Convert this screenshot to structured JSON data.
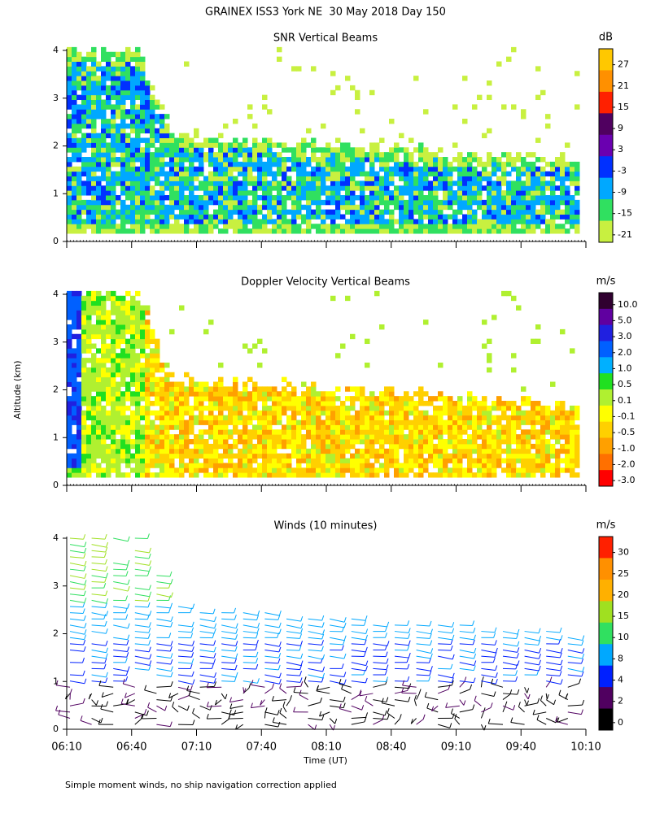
{
  "title": "GRAINEX ISS3 York NE  30 May 2018 Day 150",
  "footnote": "Simple moment winds, no ship navigation correction applied",
  "chart_data": [
    {
      "type": "heatmap",
      "title": "SNR Vertical Beams",
      "ylim": [
        0,
        4
      ],
      "yticks": [
        0,
        1,
        2,
        3,
        4
      ],
      "xlim": [
        370,
        610
      ],
      "xticks": [
        370,
        400,
        430,
        460,
        490,
        520,
        550,
        580,
        610
      ],
      "colorbar": {
        "unit": "dB",
        "colors": [
          "#ffc800",
          "#ff9000",
          "#ff2000",
          "#500060",
          "#6a00b0",
          "#0030ff",
          "#00a8ff",
          "#30e060",
          "#c8f040"
        ],
        "ticks": [
          27,
          21,
          15,
          9,
          3,
          -3,
          -9,
          -15,
          -21
        ]
      }
    },
    {
      "type": "heatmap",
      "title": "Doppler Velocity Vertical Beams",
      "y_label": "Altitude (km)",
      "ylim": [
        0,
        4
      ],
      "yticks": [
        0,
        1,
        2,
        3,
        4
      ],
      "xlim": [
        370,
        610
      ],
      "xticks": [
        370,
        400,
        430,
        460,
        490,
        520,
        550,
        580,
        610
      ],
      "colorbar": {
        "unit": "m/s",
        "colors": [
          "#300030",
          "#6000a0",
          "#2020e0",
          "#0060ff",
          "#00b0ff",
          "#20e020",
          "#b0f030",
          "#ffff00",
          "#ffd000",
          "#ffa000",
          "#ff7000",
          "#ff0000"
        ],
        "ticks": [
          {
            "value": 10,
            "label": "10.0"
          },
          {
            "value": 5,
            "label": "5.0"
          },
          {
            "value": 3,
            "label": "3.0"
          },
          {
            "value": 2,
            "label": "2.0"
          },
          {
            "value": 1,
            "label": "1.0"
          },
          0.5,
          0.1,
          -0.1,
          -0.5,
          {
            "value": -1,
            "label": "-1.0"
          },
          {
            "value": -2,
            "label": "-2.0"
          },
          {
            "value": -3,
            "label": "-3.0"
          }
        ]
      }
    },
    {
      "type": "barbs",
      "title": "Winds (10 minutes)",
      "x_label": "Time (UT)",
      "ylim": [
        0,
        4
      ],
      "yticks": [
        0,
        1,
        2,
        3,
        4
      ],
      "xlim": [
        370,
        610
      ],
      "xticks": [
        {
          "value": 370,
          "label": "06:10"
        },
        {
          "value": 400,
          "label": "06:40"
        },
        {
          "value": 430,
          "label": "07:10"
        },
        {
          "value": 460,
          "label": "07:40"
        },
        {
          "value": 490,
          "label": "08:10"
        },
        {
          "value": 520,
          "label": "08:40"
        },
        {
          "value": 550,
          "label": "09:10"
        },
        {
          "value": 580,
          "label": "09:40"
        },
        {
          "value": 610,
          "label": "10:10"
        }
      ],
      "colorbar": {
        "unit": "m/s",
        "colors": [
          "#ff2000",
          "#ff9000",
          "#ffb000",
          "#a0e020",
          "#30e060",
          "#00a8ff",
          "#0020ff",
          "#500060",
          "#000000"
        ],
        "ticks": [
          30,
          25,
          20,
          15,
          10,
          8,
          4,
          2,
          0
        ]
      }
    }
  ]
}
